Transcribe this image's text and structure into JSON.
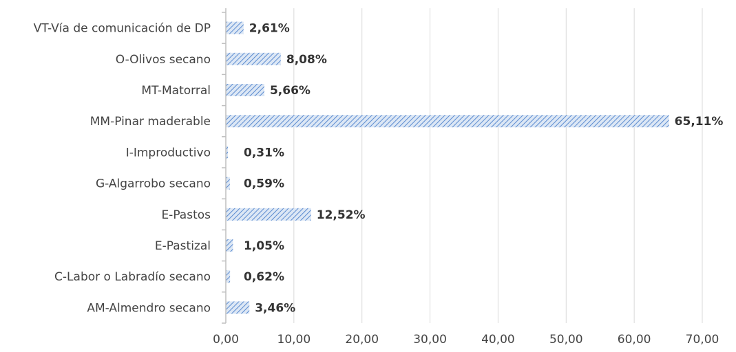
{
  "chart_data": {
    "type": "bar",
    "orientation": "horizontal",
    "categories": [
      "VT-Vía de comunicación de DP",
      "O-Olivos secano",
      "MT-Matorral",
      "MM-Pinar maderable",
      "I-Improductivo",
      "G-Algarrobo secano",
      "E-Pastos",
      "E-Pastizal",
      "C-Labor o Labradío secano",
      "AM-Almendro secano"
    ],
    "values": [
      2.61,
      8.08,
      5.66,
      65.11,
      0.31,
      0.59,
      12.52,
      1.05,
      0.62,
      3.46
    ],
    "data_labels": [
      "2,61%",
      "8,08%",
      "5,66%",
      "65,11%",
      "0,31%",
      "0,59%",
      "12,52%",
      "1,05%",
      "0,62%",
      "3,46%"
    ],
    "x_ticks": [
      "0,00",
      "10,00",
      "20,00",
      "30,00",
      "40,00",
      "50,00",
      "60,00",
      "70,00"
    ],
    "xlim": [
      0,
      70
    ],
    "grid": true,
    "bar_fill": "diagonal-hatch",
    "colors": {
      "bar_hatch": "#5b8bd0",
      "bar_bg": "#dce7f5",
      "grid": "#d9d9d9",
      "axis": "#bfbfbf"
    },
    "title": "",
    "xlabel": "",
    "ylabel": ""
  }
}
